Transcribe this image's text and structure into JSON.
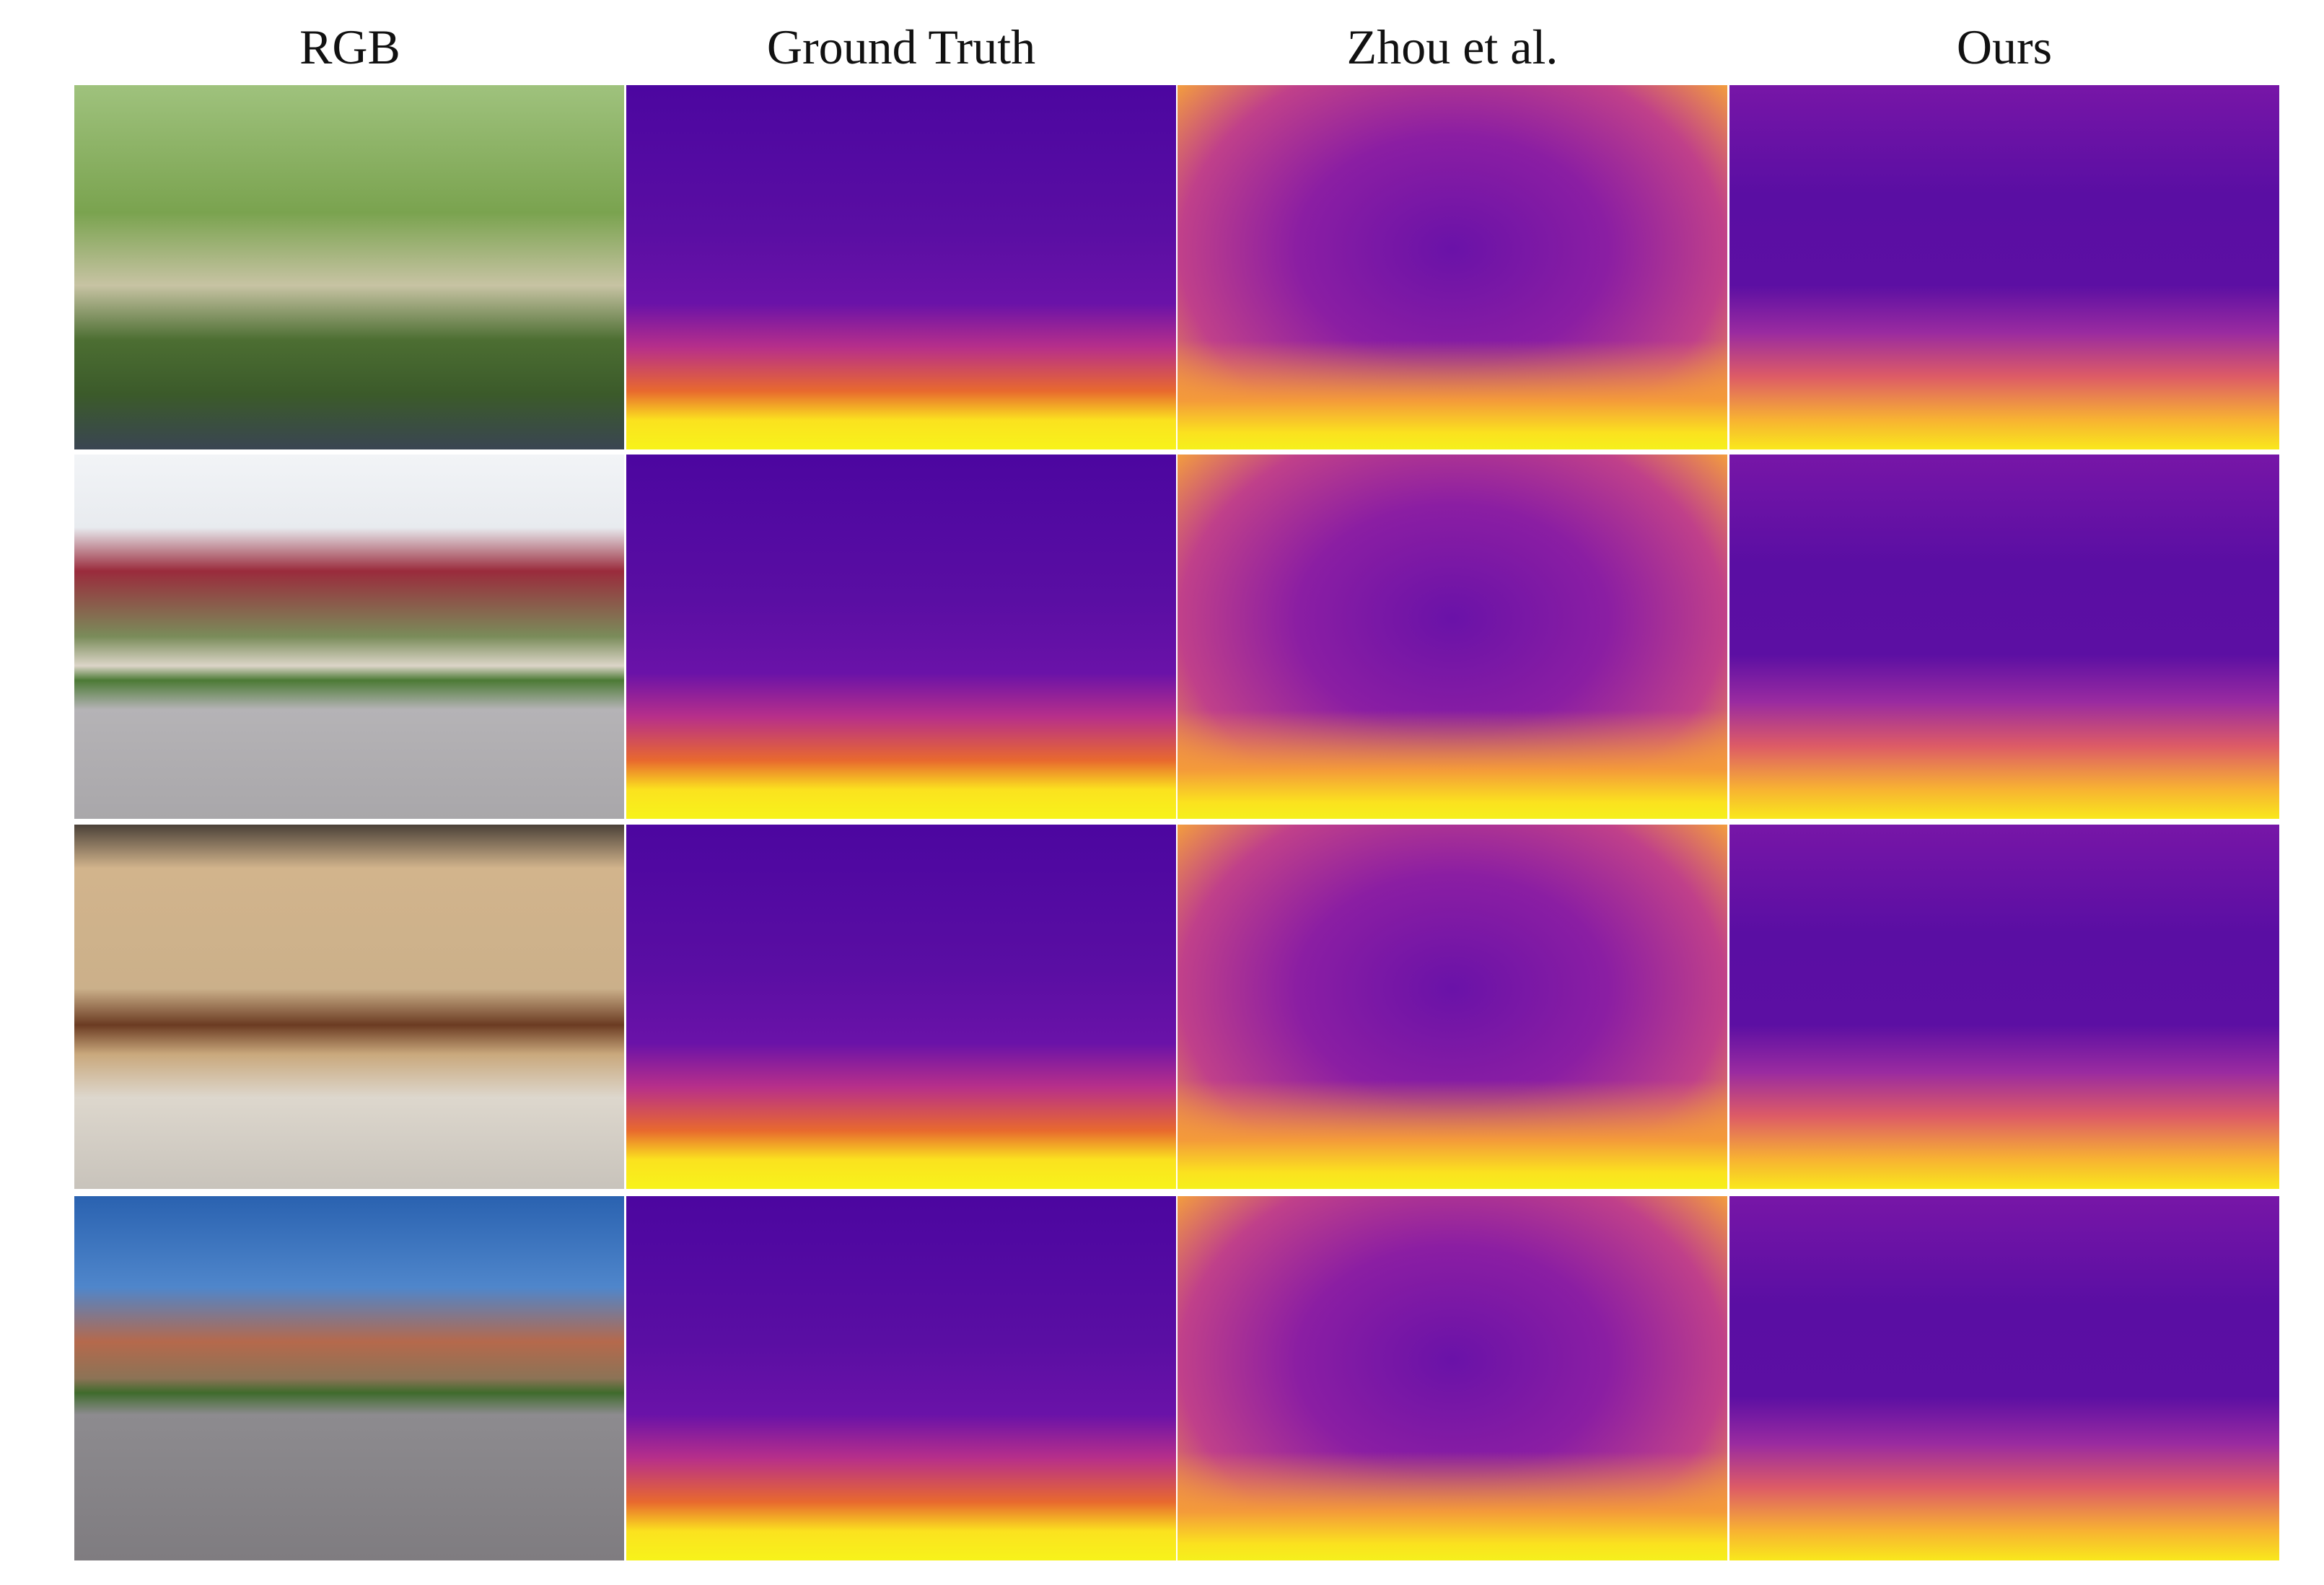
{
  "columns": [
    "RGB",
    "Ground Truth",
    "Zhou et al.",
    "Ours"
  ]
}
